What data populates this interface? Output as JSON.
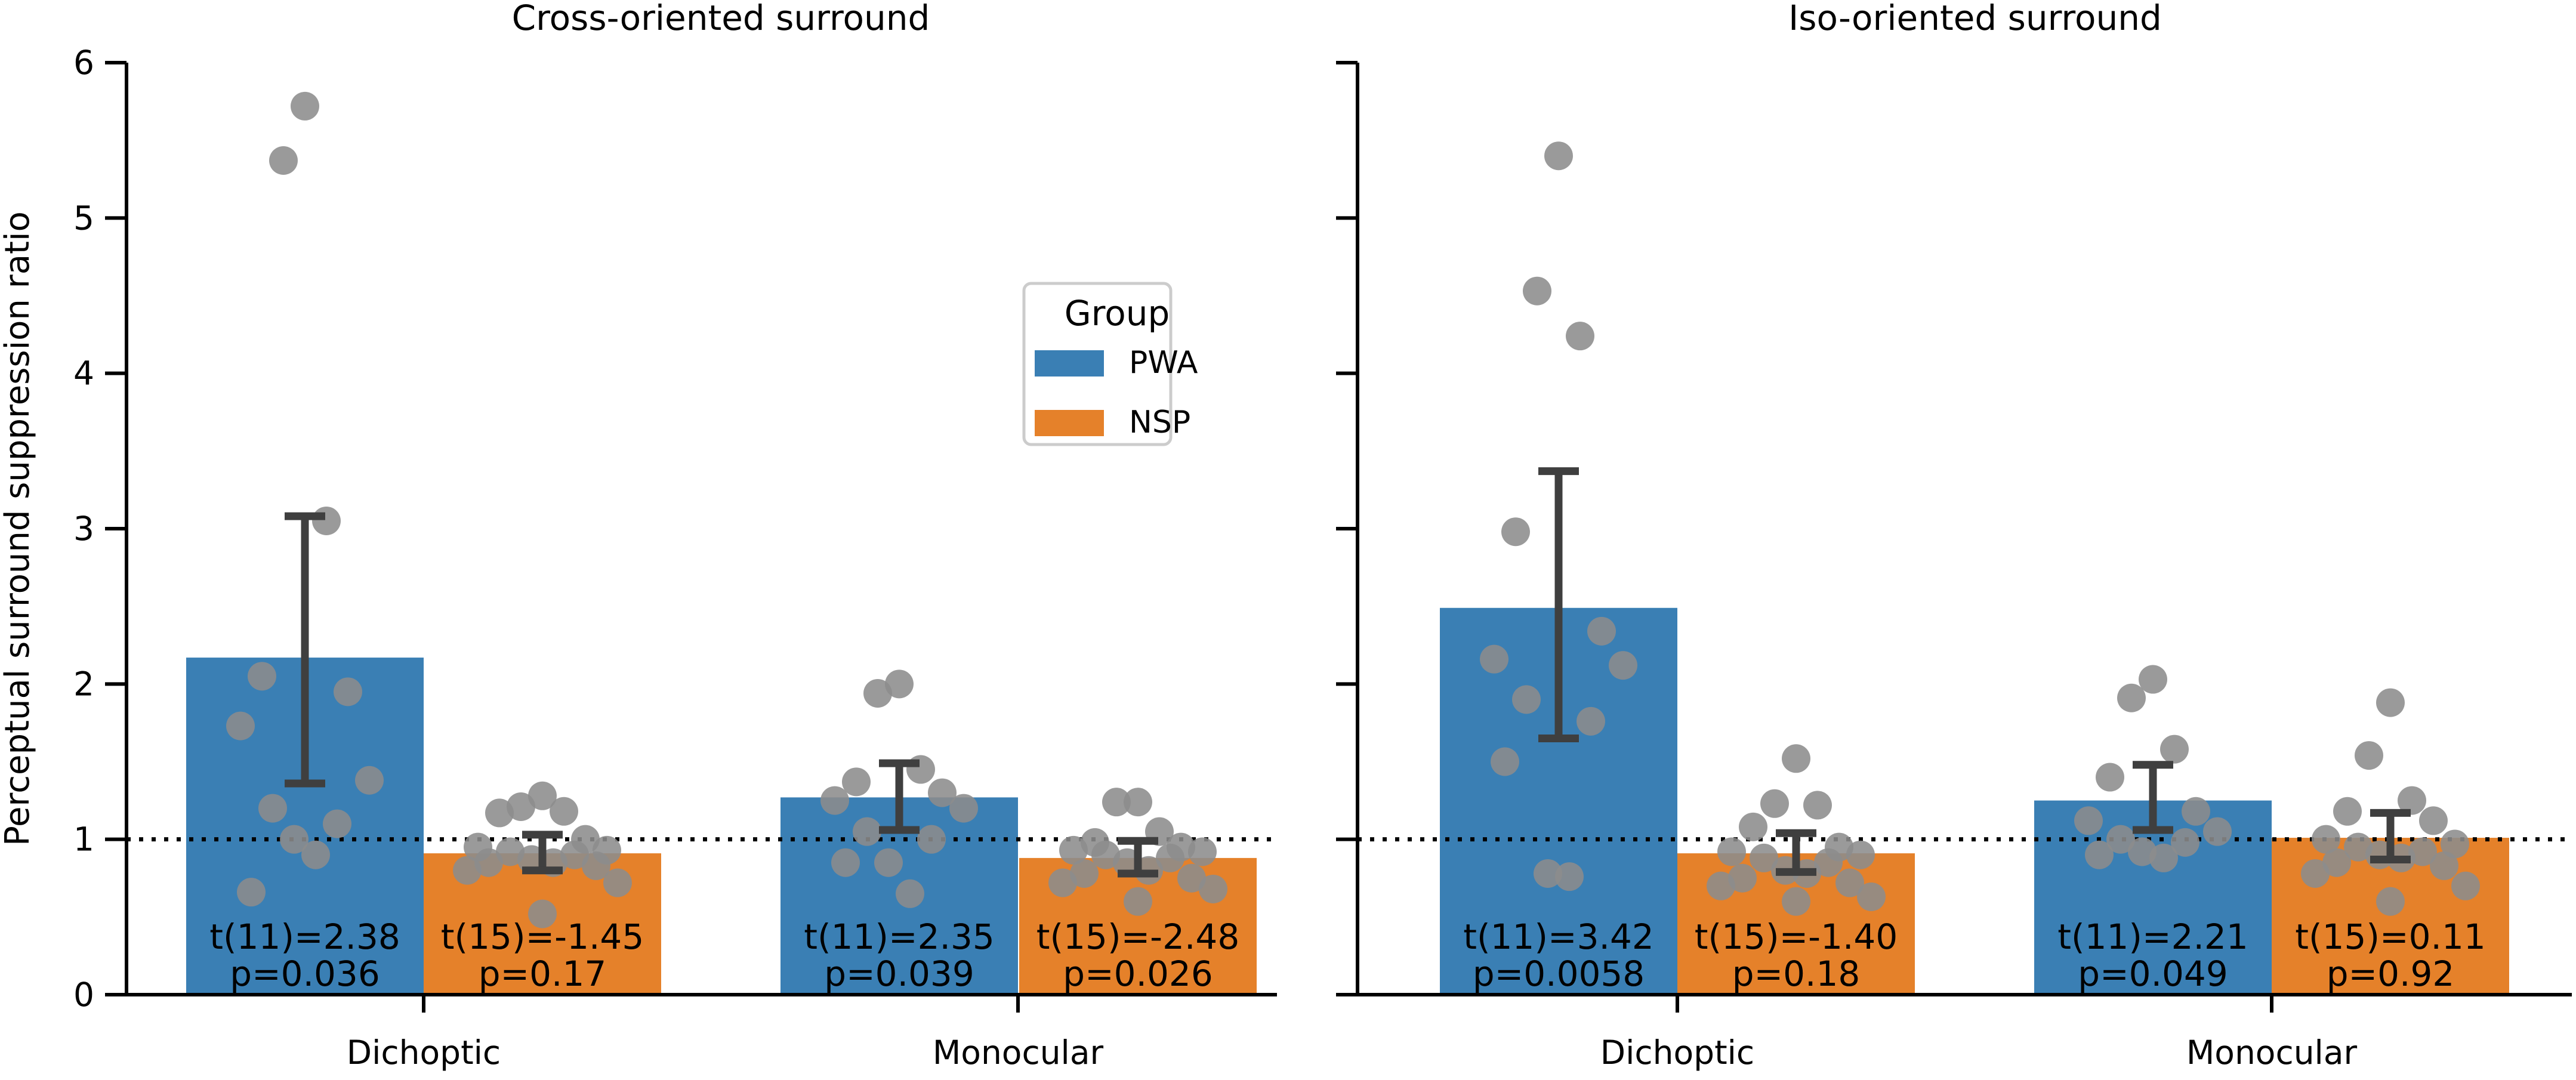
{
  "chart_data": {
    "type": "bar",
    "ylabel": "Perceptual surround suppression ratio",
    "ylim": [
      0,
      6
    ],
    "yticks": [
      "0",
      "1",
      "2",
      "3",
      "4",
      "5",
      "6"
    ],
    "reference_line": 1,
    "legend": {
      "title": "Group",
      "placement": "upper-middle of left panel",
      "entries": [
        "PWA",
        "NSP"
      ]
    },
    "colors": {
      "PWA": "#3a7fb4",
      "NSP": "#e5812a",
      "points": "#8c8c8c",
      "errorbar": "#3f3f3f",
      "reference": "#000000"
    },
    "categories": [
      "Dichoptic",
      "Monocular"
    ],
    "panels": [
      {
        "title": "Cross-oriented surround",
        "bars": [
          {
            "category": "Dichoptic",
            "group": "PWA",
            "mean": 2.17,
            "ci": [
              1.36,
              3.08
            ],
            "stat": "t(11)=2.38",
            "p": "p=0.036",
            "points": [
              5.72,
              5.37,
              3.05,
              2.05,
              1.95,
              1.73,
              1.38,
              1.2,
              1.1,
              1.0,
              0.9,
              0.66
            ]
          },
          {
            "category": "Dichoptic",
            "group": "NSP",
            "mean": 0.91,
            "ci": [
              0.8,
              1.03
            ],
            "stat": "t(15)=-1.45",
            "p": "p=0.17",
            "points": [
              1.28,
              1.21,
              1.18,
              1.17,
              1.0,
              0.95,
              0.93,
              0.92,
              0.9,
              0.87,
              0.85,
              0.85,
              0.83,
              0.8,
              0.72,
              0.52
            ]
          },
          {
            "category": "Monocular",
            "group": "PWA",
            "mean": 1.27,
            "ci": [
              1.06,
              1.49
            ],
            "stat": "t(11)=2.35",
            "p": "p=0.039",
            "points": [
              2.0,
              1.94,
              1.45,
              1.37,
              1.3,
              1.25,
              1.2,
              1.05,
              1.0,
              0.85,
              0.65,
              0.85
            ]
          },
          {
            "category": "Monocular",
            "group": "NSP",
            "mean": 0.88,
            "ci": [
              0.78,
              0.99
            ],
            "stat": "t(15)=-2.48",
            "p": "p=0.026",
            "points": [
              1.24,
              1.24,
              1.05,
              0.98,
              0.95,
              0.93,
              0.92,
              0.9,
              0.88,
              0.85,
              0.8,
              0.78,
              0.75,
              0.72,
              0.68,
              0.6
            ]
          }
        ]
      },
      {
        "title": "Iso-oriented surround",
        "bars": [
          {
            "category": "Dichoptic",
            "group": "PWA",
            "mean": 2.49,
            "ci": [
              1.65,
              3.37
            ],
            "stat": "t(11)=3.42",
            "p": "p=0.0058",
            "points": [
              5.4,
              4.53,
              4.24,
              2.98,
              2.34,
              2.16,
              2.12,
              1.9,
              1.76,
              0.78,
              0.76,
              1.5
            ]
          },
          {
            "category": "Dichoptic",
            "group": "NSP",
            "mean": 0.91,
            "ci": [
              0.79,
              1.04
            ],
            "stat": "t(15)=-1.40",
            "p": "p=0.18",
            "points": [
              1.52,
              1.23,
              1.22,
              1.08,
              0.95,
              0.92,
              0.9,
              0.88,
              0.85,
              0.8,
              0.78,
              0.75,
              0.72,
              0.7,
              0.63,
              0.6
            ]
          },
          {
            "category": "Monocular",
            "group": "PWA",
            "mean": 1.25,
            "ci": [
              1.06,
              1.48
            ],
            "stat": "t(11)=2.21",
            "p": "p=0.049",
            "points": [
              2.03,
              1.91,
              1.58,
              1.4,
              1.18,
              1.12,
              1.05,
              1.0,
              0.98,
              0.92,
              0.88,
              0.9
            ]
          },
          {
            "category": "Monocular",
            "group": "NSP",
            "mean": 1.01,
            "ci": [
              0.87,
              1.17
            ],
            "stat": "t(15)=0.11",
            "p": "p=0.92",
            "points": [
              1.88,
              1.54,
              1.25,
              1.18,
              1.12,
              1.0,
              0.97,
              0.95,
              0.92,
              0.9,
              0.88,
              0.85,
              0.83,
              0.78,
              0.7,
              0.6
            ]
          }
        ]
      }
    ]
  }
}
